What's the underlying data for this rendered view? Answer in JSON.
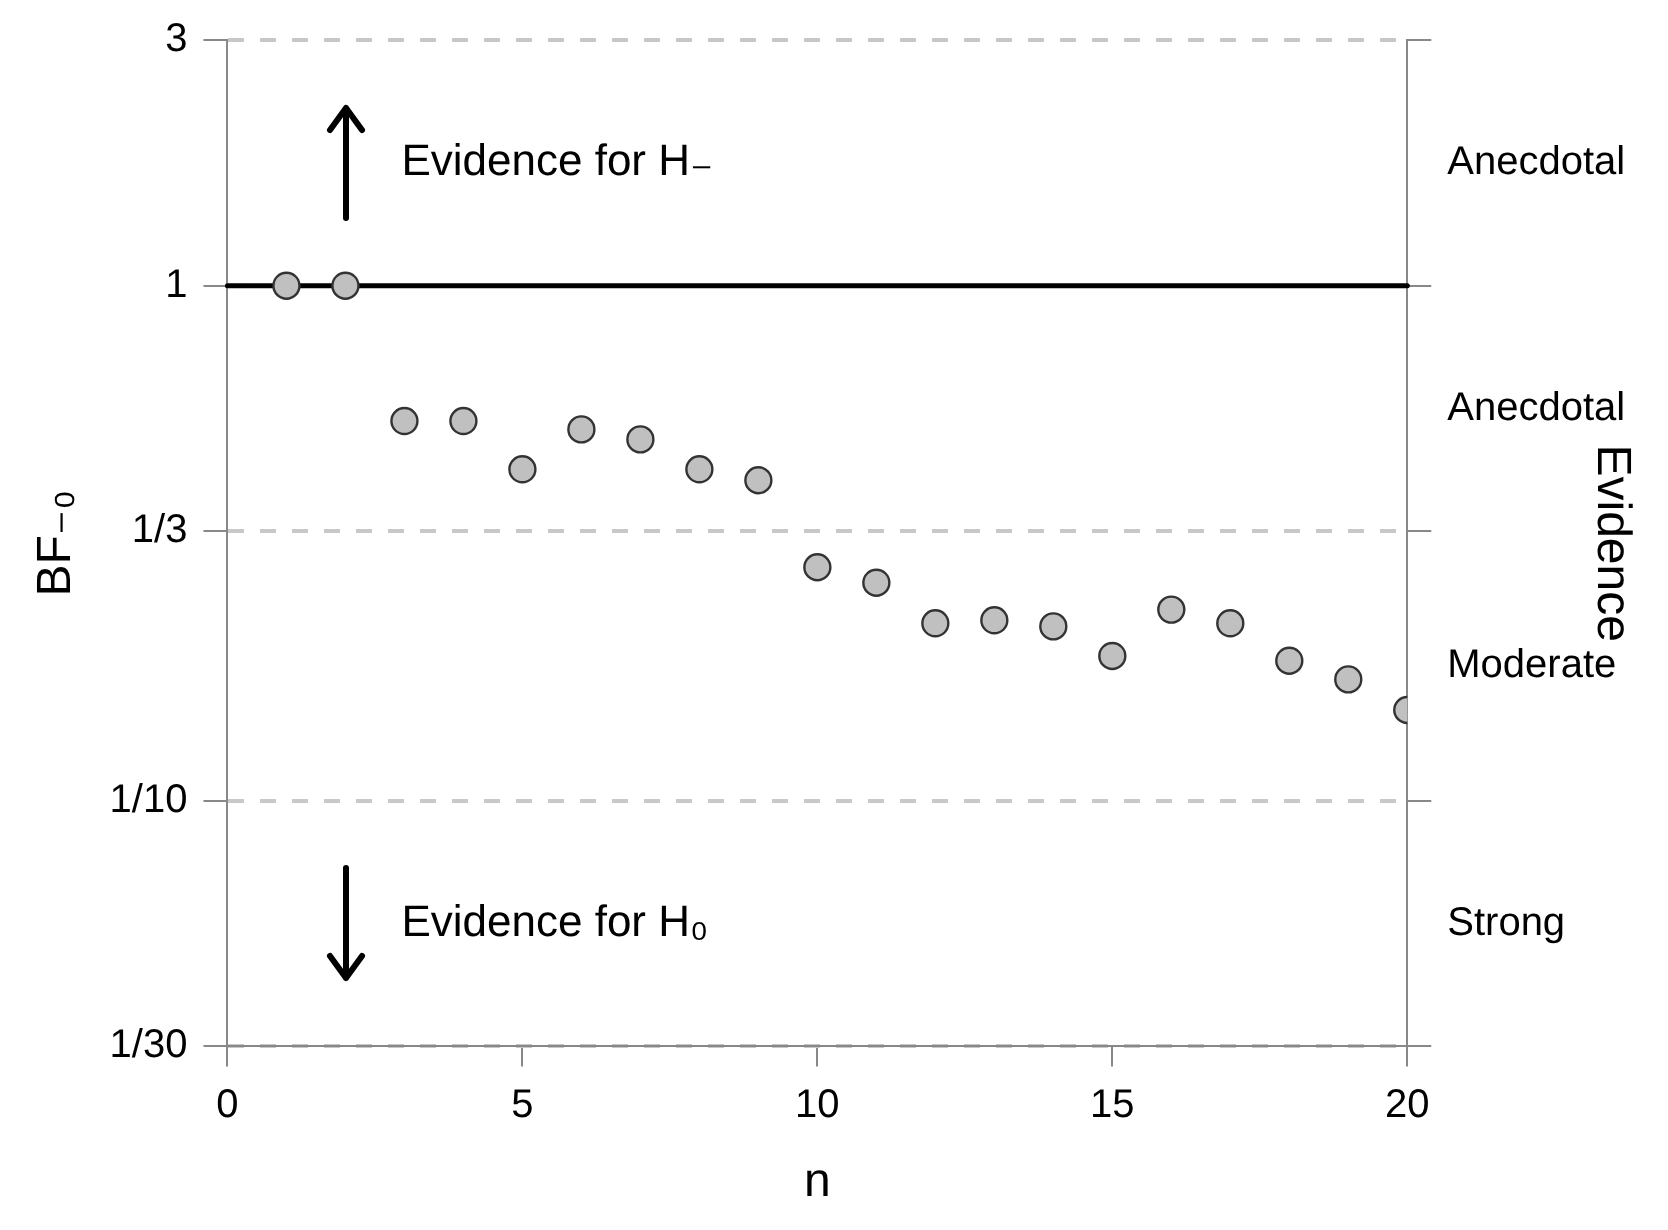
{
  "chart_data": {
    "type": "scatter",
    "xlabel": "n",
    "ylabel": "BF₋₀",
    "y2label": "Evidence",
    "x": [
      1,
      2,
      3,
      4,
      5,
      6,
      7,
      8,
      9,
      10,
      11,
      12,
      13,
      14,
      15,
      16,
      17,
      18,
      19,
      20
    ],
    "series": [
      {
        "color": "#c0c0c0",
        "values": [
          1,
          1,
          0.546,
          0.546,
          0.44,
          0.526,
          0.503,
          0.44,
          0.419,
          0.284,
          0.265,
          0.221,
          0.224,
          0.218,
          0.191,
          0.235,
          0.221,
          0.187,
          0.172,
          0.15
        ]
      }
    ],
    "xlim": [
      0,
      20
    ],
    "xticks": [
      0,
      5,
      10,
      15,
      20
    ],
    "ylim": [
      0.03333,
      3
    ],
    "yticks": [
      3,
      1,
      {
        "value": 0.3333,
        "label": "1/3"
      },
      {
        "value": 0.1,
        "label": "1/10"
      },
      {
        "value": 0.03333,
        "label": "1/30"
      }
    ],
    "log": "y",
    "grid": "y",
    "legend": false,
    "marker": "circle",
    "ref_lines": [
      {
        "axis": "y",
        "value": 1,
        "color": "#000000",
        "line_style": "solid"
      }
    ],
    "annotations": [
      "Evidence for H₋",
      "Evidence for H₀",
      "Anecdotal",
      "Anecdotal",
      "Moderate",
      "Strong"
    ]
  }
}
